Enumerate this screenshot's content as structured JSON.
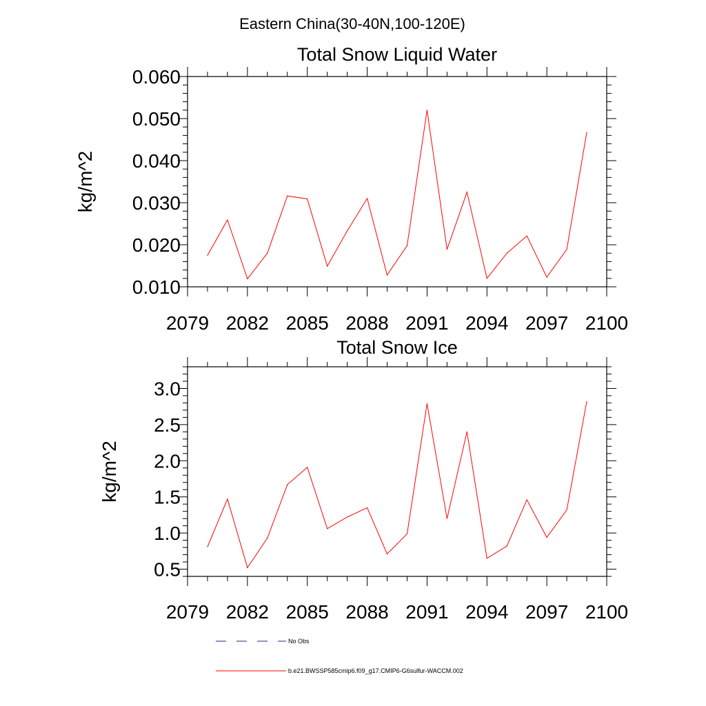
{
  "figure_title": "Eastern China(30-40N,100-120E)",
  "legend": {
    "entries": [
      {
        "label": "No Obs",
        "color": "#1e2a78",
        "dash": "dashed"
      },
      {
        "label": "b.e21.BWSSP585cmip6.f09_g17.CMIP6-G6sulfur-WACCM.002",
        "color": "#ff0000",
        "dash": "solid"
      }
    ]
  },
  "chart_data": [
    {
      "type": "line",
      "title": "Total Snow Liquid Water",
      "xlabel": "",
      "ylabel": "kg/m^2",
      "xlim": [
        2079,
        2100
      ],
      "ylim": [
        0.01,
        0.06
      ],
      "xticks": [
        2079,
        2082,
        2085,
        2088,
        2091,
        2094,
        2097,
        2100
      ],
      "xtick_labels": [
        "2079",
        "2082",
        "2085",
        "2088",
        "2091",
        "2094",
        "2097",
        "2100"
      ],
      "yticks": [
        0.01,
        0.02,
        0.03,
        0.04,
        0.05,
        0.06
      ],
      "ytick_labels": [
        "0.010",
        "0.020",
        "0.030",
        "0.040",
        "0.050",
        "0.060"
      ],
      "grid": false,
      "x": [
        2080,
        2081,
        2082,
        2083,
        2084,
        2085,
        2086,
        2087,
        2088,
        2089,
        2090,
        2091,
        2092,
        2093,
        2094,
        2095,
        2096,
        2097,
        2098,
        2099
      ],
      "series": [
        {
          "color": "#ff0000",
          "values": [
            0.0175,
            0.0259,
            0.0119,
            0.018,
            0.0316,
            0.0309,
            0.0149,
            0.0233,
            0.031,
            0.0128,
            0.0198,
            0.052,
            0.0189,
            0.0325,
            0.012,
            0.018,
            0.0221,
            0.0123,
            0.0189,
            0.0467
          ]
        }
      ]
    },
    {
      "type": "line",
      "title": "Total Snow Ice",
      "xlabel": "",
      "ylabel": "kg/m^2",
      "xlim": [
        2079,
        2100
      ],
      "ylim": [
        0.4,
        3.3
      ],
      "xticks": [
        2079,
        2082,
        2085,
        2088,
        2091,
        2094,
        2097,
        2100
      ],
      "xtick_labels": [
        "2079",
        "2082",
        "2085",
        "2088",
        "2091",
        "2094",
        "2097",
        "2100"
      ],
      "yticks": [
        0.5,
        1.0,
        1.5,
        2.0,
        2.5,
        3.0
      ],
      "ytick_labels": [
        "0.5",
        "1.0",
        "1.5",
        "2.0",
        "2.5",
        "3.0"
      ],
      "grid": false,
      "x": [
        2080,
        2081,
        2082,
        2083,
        2084,
        2085,
        2086,
        2087,
        2088,
        2089,
        2090,
        2091,
        2092,
        2093,
        2094,
        2095,
        2096,
        2097,
        2098,
        2099
      ],
      "series": [
        {
          "color": "#ff0000",
          "values": [
            0.81,
            1.47,
            0.52,
            0.93,
            1.67,
            1.91,
            1.06,
            1.22,
            1.35,
            0.71,
            0.99,
            2.79,
            1.2,
            2.4,
            0.65,
            0.82,
            1.46,
            0.94,
            1.32,
            2.82
          ]
        }
      ]
    }
  ]
}
